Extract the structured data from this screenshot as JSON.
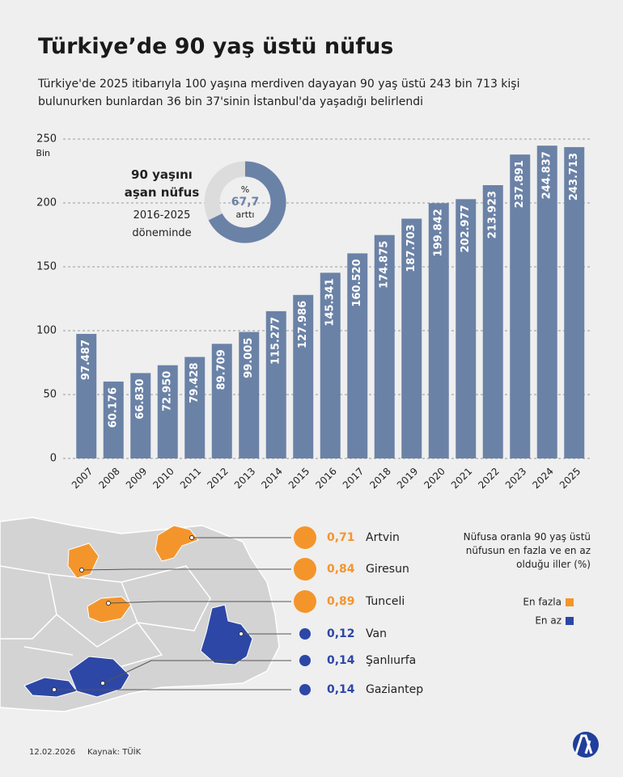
{
  "title": "Türkiye’de 90 yaş üstü nüfus",
  "subtitle": "Türkiye'de 2025 itibarıyla 100 yaşına merdiven dayayan 90 yaş üstü 243 bin 713 kişi bulunurken bunlardan 36 bin 37'sinin İstanbul'da yaşadığı belirlendi",
  "chart_data": [
    {
      "type": "bar",
      "y_unit": "Bin",
      "categories": [
        "2007",
        "2008",
        "2009",
        "2010",
        "2011",
        "2012",
        "2013",
        "2014",
        "2015",
        "2016",
        "2017",
        "2018",
        "2019",
        "2020",
        "2021",
        "2022",
        "2023",
        "2024",
        "2025"
      ],
      "values": [
        97.487,
        60.176,
        66.83,
        72.95,
        79.428,
        89.709,
        99.005,
        115.277,
        127.986,
        145.341,
        160.52,
        174.875,
        187.703,
        199.842,
        202.977,
        213.923,
        237.891,
        244.837,
        243.713
      ],
      "value_labels": [
        "97.487",
        "60.176",
        "66.830",
        "72.950",
        "79.428",
        "89.709",
        "99.005",
        "115.277",
        "127.986",
        "145.341",
        "160.520",
        "174.875",
        "187.703",
        "199.842",
        "202.977",
        "213.923",
        "237.891",
        "244.837",
        "243.713"
      ],
      "color": "#6b82a7",
      "ylim": [
        0,
        250
      ],
      "yticks": [
        0,
        50,
        100,
        150,
        200,
        250
      ],
      "grid": true
    },
    {
      "type": "pie",
      "title": "90 yaşını aşan nüfus",
      "subtitle": "2016-2025 döneminde",
      "unit": "%",
      "values": [
        67.7
      ],
      "value_labels": [
        "67,7"
      ],
      "caption": "arttı",
      "color": "#6b82a7",
      "rest_color": "#dcdcdc"
    },
    {
      "type": "bubble",
      "title": "Nüfusa oranla 90 yaş üstü nüfusun en fazla ve en az olduğu iller (%)",
      "series": [
        {
          "name": "En fazla",
          "color": "#f4952b",
          "categories": [
            "Artvin",
            "Giresun",
            "Tunceli"
          ],
          "values": [
            0.71,
            0.84,
            0.89
          ],
          "value_labels": [
            "0,71",
            "0,84",
            "0,89"
          ]
        },
        {
          "name": "En az",
          "color": "#2d47a6",
          "categories": [
            "Van",
            "Şanlıurfa",
            "Gaziantep"
          ],
          "values": [
            0.12,
            0.14,
            0.14
          ],
          "value_labels": [
            "0,12",
            "0,14",
            "0,14"
          ]
        }
      ]
    }
  ],
  "footer": {
    "date": "12.02.2026",
    "source": "Kaynak: TÜİK"
  }
}
